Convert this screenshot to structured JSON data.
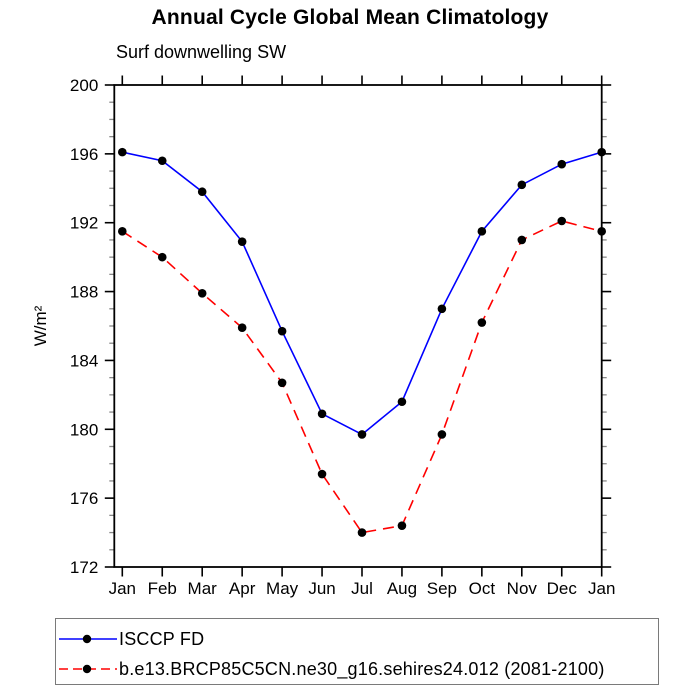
{
  "chart_data": {
    "type": "line",
    "title": "Annual Cycle Global Mean Climatology",
    "subtitle": "Surf downwelling SW",
    "ylabel": "W/m²",
    "xlabel": "",
    "x_labels": [
      "Jan",
      "Feb",
      "Mar",
      "Apr",
      "May",
      "Jun",
      "Jul",
      "Aug",
      "Sep",
      "Oct",
      "Nov",
      "Dec",
      "Jan"
    ],
    "ylim": [
      172,
      200
    ],
    "y_major_ticks": [
      200,
      196,
      192,
      188,
      184,
      180,
      176,
      172
    ],
    "y_minor_step": 1,
    "grid": false,
    "frame": "box-with-outward-ticks",
    "legend_position": "bottom-left-outside-box",
    "axis_color": "#000000",
    "marker": "filled-circle",
    "marker_color": "#000000",
    "series": [
      {
        "name": "ISCCP FD",
        "color": "#0000ff",
        "line_style": "solid",
        "values": [
          196.1,
          195.6,
          193.8,
          190.9,
          185.7,
          180.9,
          179.7,
          181.6,
          187.0,
          191.5,
          194.2,
          195.4,
          196.1
        ]
      },
      {
        "name": "b.e13.BRCP85C5CN.ne30_g16.sehires24.012 (2081-2100)",
        "color": "#ff0000",
        "line_style": "dashed",
        "values": [
          191.5,
          190.0,
          187.9,
          185.9,
          182.7,
          177.4,
          174.0,
          174.4,
          179.7,
          186.2,
          191.0,
          192.1,
          191.5
        ]
      }
    ]
  }
}
